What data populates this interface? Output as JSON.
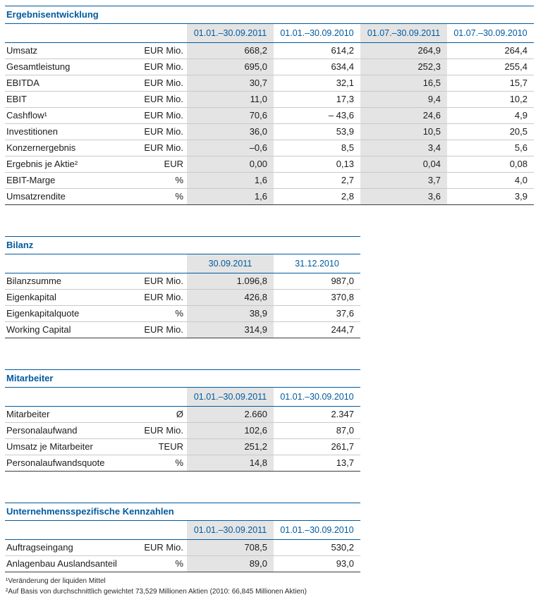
{
  "tables": [
    {
      "title": "Ergebnisentwicklung",
      "columns": [
        "01.01.–30.09.2011",
        "01.01.–30.09.2010",
        "01.07.–30.09.2011",
        "01.07.–30.09.2010"
      ],
      "rows": [
        {
          "label": "Umsatz",
          "unit": "EUR Mio.",
          "values": [
            "668,2",
            "614,2",
            "264,9",
            "264,4"
          ]
        },
        {
          "label": "Gesamtleistung",
          "unit": "EUR Mio.",
          "values": [
            "695,0",
            "634,4",
            "252,3",
            "255,4"
          ]
        },
        {
          "label": "EBITDA",
          "unit": "EUR Mio.",
          "values": [
            "30,7",
            "32,1",
            "16,5",
            "15,7"
          ]
        },
        {
          "label": "EBIT",
          "unit": "EUR Mio.",
          "values": [
            "11,0",
            "17,3",
            "9,4",
            "10,2"
          ]
        },
        {
          "label": "Cashflow¹",
          "unit": "EUR Mio.",
          "values": [
            "70,6",
            "– 43,6",
            "24,6",
            "4,9"
          ]
        },
        {
          "label": "Investitionen",
          "unit": "EUR Mio.",
          "values": [
            "36,0",
            "53,9",
            "10,5",
            "20,5"
          ]
        },
        {
          "label": "Konzernergebnis",
          "unit": "EUR Mio.",
          "values": [
            "–0,6",
            "8,5",
            "3,4",
            "5,6"
          ]
        },
        {
          "label": "Ergebnis je Aktie²",
          "unit": "EUR",
          "values": [
            "0,00",
            "0,13",
            "0,04",
            "0,08"
          ]
        },
        {
          "label": "EBIT-Marge",
          "unit": "%",
          "values": [
            "1,6",
            "2,7",
            "3,7",
            "4,0"
          ]
        },
        {
          "label": "Umsatzrendite",
          "unit": "%",
          "values": [
            "1,6",
            "2,8",
            "3,6",
            "3,9"
          ]
        }
      ]
    },
    {
      "title": "Bilanz",
      "columns": [
        "30.09.2011",
        "31.12.2010"
      ],
      "rows": [
        {
          "label": "Bilanzsumme",
          "unit": "EUR Mio.",
          "values": [
            "1.096,8",
            "987,0"
          ]
        },
        {
          "label": "Eigenkapital",
          "unit": "EUR Mio.",
          "values": [
            "426,8",
            "370,8"
          ]
        },
        {
          "label": "Eigenkapitalquote",
          "unit": "%",
          "values": [
            "38,9",
            "37,6"
          ]
        },
        {
          "label": "Working Capital",
          "unit": "EUR Mio.",
          "values": [
            "314,9",
            "244,7"
          ]
        }
      ]
    },
    {
      "title": "Mitarbeiter",
      "columns": [
        "01.01.–30.09.2011",
        "01.01.–30.09.2010"
      ],
      "rows": [
        {
          "label": "Mitarbeiter",
          "unit": "Ø",
          "values": [
            "2.660",
            "2.347"
          ]
        },
        {
          "label": "Personalaufwand",
          "unit": "EUR Mio.",
          "values": [
            "102,6",
            "87,0"
          ]
        },
        {
          "label": "Umsatz je Mitarbeiter",
          "unit": "TEUR",
          "values": [
            "251,2",
            "261,7"
          ]
        },
        {
          "label": "Personalaufwandsquote",
          "unit": "%",
          "values": [
            "14,8",
            "13,7"
          ]
        }
      ]
    },
    {
      "title": "Unternehmensspezifische Kennzahlen",
      "columns": [
        "01.01.–30.09.2011",
        "01.01.–30.09.2010"
      ],
      "rows": [
        {
          "label": "Auftragseingang",
          "unit": "EUR Mio.",
          "values": [
            "708,5",
            "530,2"
          ]
        },
        {
          "label": "Anlagenbau Auslandsanteil",
          "unit": "%",
          "values": [
            "89,0",
            "93,0"
          ]
        }
      ]
    }
  ],
  "footnotes": [
    "¹Veränderung der liquiden Mittel",
    "²Auf Basis von durchschnittlich gewichtet 73,529 Millionen Aktien (2010: 66,845 Millionen Aktien)"
  ],
  "colors": {
    "accent_blue": "#005a9e",
    "shaded_column": "#e4e4e4"
  }
}
